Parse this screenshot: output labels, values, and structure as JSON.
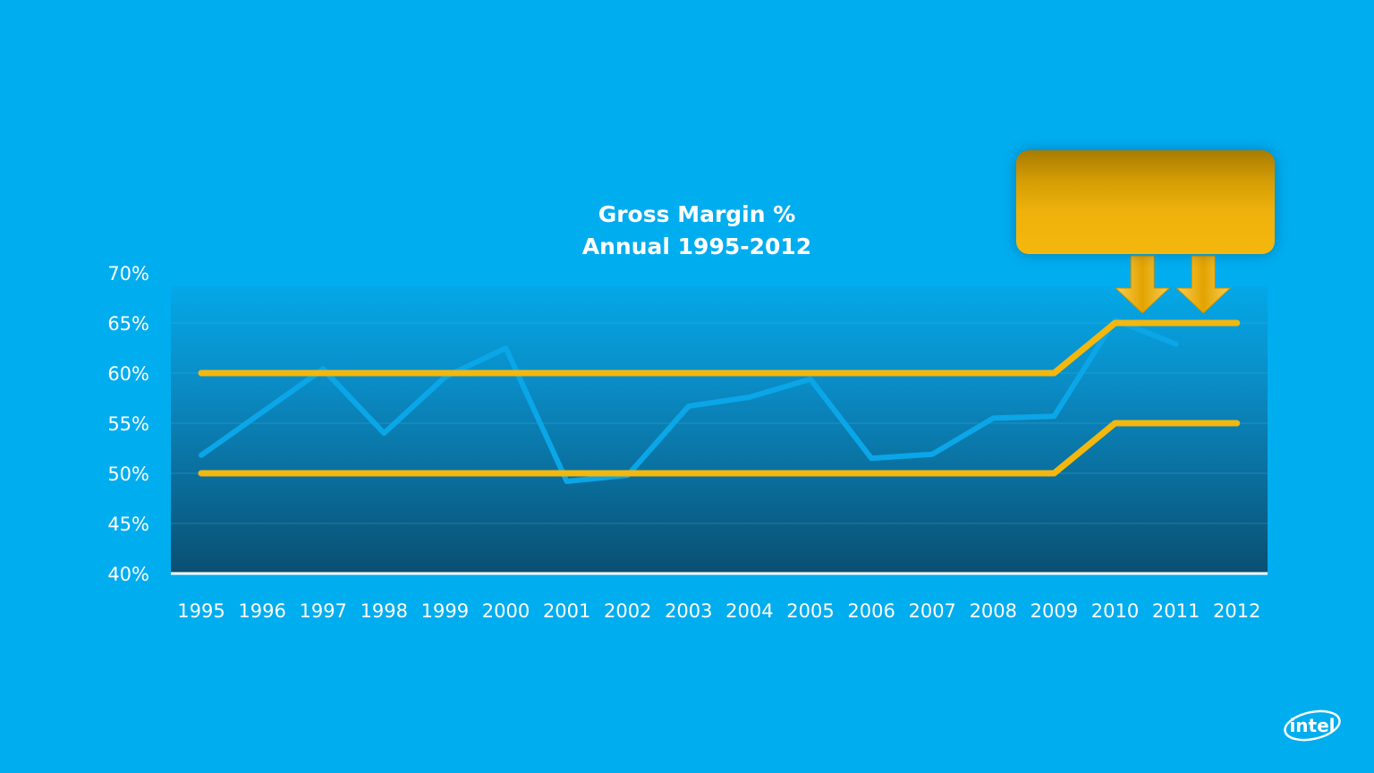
{
  "chart_data": {
    "type": "line",
    "title": "Gross Margin %",
    "subtitle": "Annual 1995-2012",
    "categories": [
      "1995",
      "1996",
      "1997",
      "1998",
      "1999",
      "2000",
      "2001",
      "2002",
      "2003",
      "2004",
      "2005",
      "2006",
      "2007",
      "2008",
      "2009",
      "2010",
      "2011",
      "2012"
    ],
    "y_ticks": [
      "70%",
      "65%",
      "60%",
      "55%",
      "50%",
      "45%",
      "40%"
    ],
    "ylim": [
      40,
      70
    ],
    "grid": true,
    "series": [
      {
        "color": "#0aa6e8",
        "values": [
          51.8,
          56.1,
          60.4,
          54.0,
          59.6,
          62.5,
          49.2,
          49.8,
          56.7,
          57.6,
          59.4,
          51.5,
          51.9,
          55.5,
          55.7,
          65.3,
          62.9,
          null
        ]
      },
      {
        "color": "#f4b70d",
        "values": [
          60,
          60,
          60,
          60,
          60,
          60,
          60,
          60,
          60,
          60,
          60,
          60,
          60,
          60,
          60,
          65,
          65,
          65
        ]
      },
      {
        "color": "#f4b70d",
        "values": [
          50,
          50,
          50,
          50,
          50,
          50,
          50,
          50,
          50,
          50,
          50,
          50,
          50,
          50,
          50,
          55,
          55,
          55
        ]
      }
    ],
    "annotation_arrows": [
      2010,
      2011
    ]
  },
  "colors": {
    "background": "#00adef",
    "accent": "#f4b70d",
    "line": "#0aa6e8"
  },
  "logo": {
    "text": "intel",
    "icon": "intel-logo-icon"
  }
}
